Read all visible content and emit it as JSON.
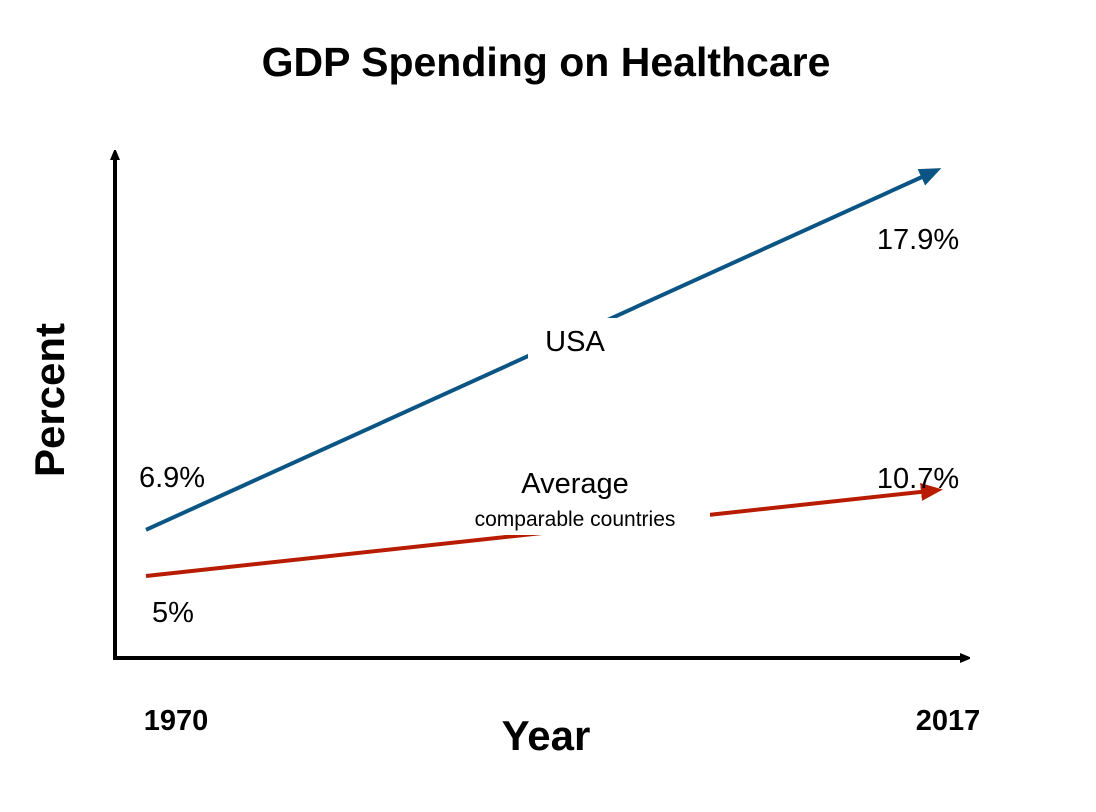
{
  "chart_data": {
    "type": "line",
    "title": "GDP Spending on Healthcare",
    "xlabel": "Year",
    "ylabel": "Percent",
    "categories": [
      "1970",
      "2017"
    ],
    "grid": false,
    "series": [
      {
        "name": "USA",
        "subtitle": "",
        "values": [
          6.9,
          17.9
        ],
        "labels": [
          "6.9%",
          "17.9%"
        ],
        "color": "#0b5585"
      },
      {
        "name": "Average",
        "subtitle": "comparable countries",
        "values": [
          5,
          10.7
        ],
        "labels": [
          "5%",
          "10.7%"
        ],
        "color": "#b81c00"
      }
    ]
  }
}
